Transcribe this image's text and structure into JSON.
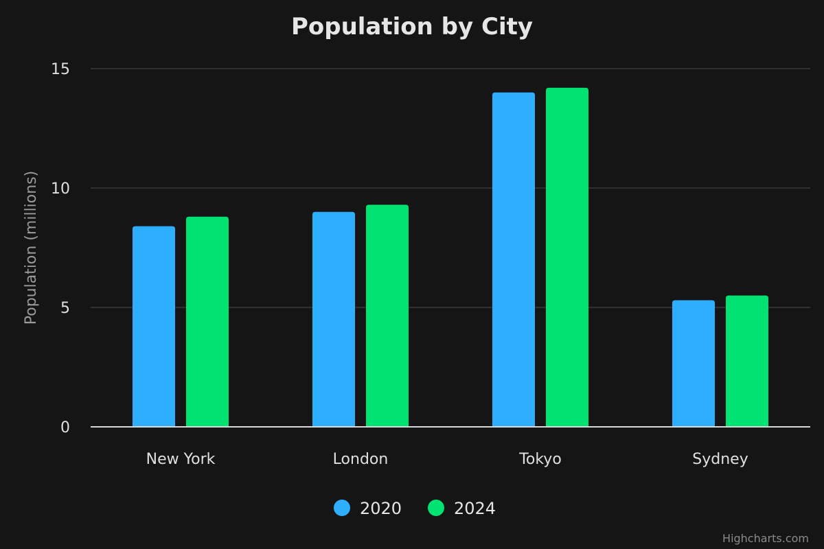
{
  "chart_data": {
    "type": "bar",
    "title": "Population by City",
    "xlabel": "",
    "ylabel": "Population (millions)",
    "categories": [
      "New York",
      "London",
      "Tokyo",
      "Sydney"
    ],
    "series": [
      {
        "name": "2020",
        "values": [
          8.4,
          9.0,
          14.0,
          5.3
        ],
        "color": "#2eaeff"
      },
      {
        "name": "2024",
        "values": [
          8.8,
          9.3,
          14.2,
          5.5
        ],
        "color": "#00e272"
      }
    ],
    "ylim": [
      0,
      15
    ],
    "yticks": [
      0,
      5,
      10,
      15
    ],
    "grid": true,
    "legend_position": "bottom-center"
  },
  "credit": "Highcharts.com"
}
